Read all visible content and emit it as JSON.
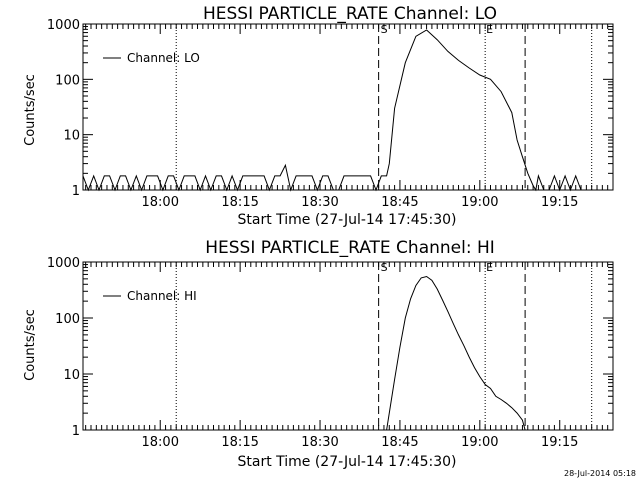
{
  "chart_data": [
    {
      "type": "line",
      "title": "HESSI PARTICLE_RATE Channel: LO",
      "xlabel": "Start Time (27-Jul-14 17:45:30)",
      "ylabel": "Counts/sec",
      "y_scale": "log",
      "ylim": [
        1,
        1000
      ],
      "yticks": [
        "1",
        "10",
        "100",
        "1000"
      ],
      "xlim": [
        "17:45:30",
        "19:25:00"
      ],
      "xticks": [
        "18:00",
        "18:15",
        "18:30",
        "18:45",
        "19:00",
        "19:15"
      ],
      "legend": "top-left",
      "series": [
        {
          "name": "Channel: LO",
          "x": [
            "17:45:30",
            "17:46:30",
            "17:47:30",
            "17:48:30",
            "17:49:30",
            "17:50:30",
            "17:51:30",
            "17:52:30",
            "17:53:30",
            "17:54:30",
            "17:55:30",
            "17:56:30",
            "17:57:30",
            "17:58:30",
            "17:59:30",
            "18:00:30",
            "18:01:30",
            "18:02:30",
            "18:03:30",
            "18:04:30",
            "18:05:30",
            "18:06:30",
            "18:07:30",
            "18:08:30",
            "18:09:30",
            "18:10:30",
            "18:11:30",
            "18:12:30",
            "18:13:30",
            "18:14:30",
            "18:15:30",
            "18:16:30",
            "18:17:30",
            "18:18:30",
            "18:19:30",
            "18:20:30",
            "18:21:30",
            "18:22:30",
            "18:23:30",
            "18:24:30",
            "18:25:30",
            "18:26:30",
            "18:27:30",
            "18:28:30",
            "18:29:30",
            "18:30:30",
            "18:31:30",
            "18:32:30",
            "18:33:30",
            "18:34:30",
            "18:35:30",
            "18:36:30",
            "18:37:30",
            "18:38:30",
            "18:39:30",
            "18:40:30",
            "18:41:30",
            "18:42:30",
            "18:43:00",
            "18:44:00",
            "18:46:00",
            "18:48:00",
            "18:50:00",
            "18:52:00",
            "18:54:00",
            "18:56:00",
            "18:58:00",
            "19:00:00",
            "19:02:00",
            "19:04:00",
            "19:06:00",
            "19:07:00",
            "19:08:00",
            "19:09:00",
            "19:10:00",
            "19:10:30",
            "19:11:00",
            "19:12:00",
            "19:13:00",
            "19:14:00",
            "19:15:00",
            "19:16:00",
            "19:17:00",
            "19:18:00",
            "19:19:00",
            "19:20:00",
            "19:21:00"
          ],
          "values": [
            1.8,
            1,
            1.8,
            1,
            1.8,
            1.8,
            1,
            1.8,
            1.8,
            1,
            1.8,
            1,
            1.8,
            1.8,
            1.8,
            1,
            1.8,
            1.8,
            1,
            1.8,
            1.8,
            1.8,
            1,
            1.8,
            1,
            1.8,
            1.8,
            1,
            1.8,
            1,
            1.8,
            1.8,
            1.8,
            1.8,
            1.8,
            1,
            1.8,
            1.8,
            2.8,
            1,
            1.8,
            1.8,
            1.8,
            1.8,
            1,
            1.8,
            1.8,
            1,
            1,
            1.8,
            1.8,
            1.8,
            1.8,
            1.8,
            1.8,
            1,
            1.8,
            1.8,
            3,
            30,
            200,
            600,
            780,
            520,
            320,
            220,
            160,
            120,
            100,
            60,
            25,
            8,
            4,
            2,
            1.2,
            1,
            1.8,
            1,
            1,
            1.8,
            1,
            1.8,
            1,
            1.8,
            1,
            1,
            1
          ]
        }
      ]
    },
    {
      "type": "line",
      "title": "HESSI PARTICLE_RATE Channel: HI",
      "xlabel": "Start Time (27-Jul-14 17:45:30)",
      "ylabel": "Counts/sec",
      "y_scale": "log",
      "ylim": [
        1,
        1000
      ],
      "yticks": [
        "1",
        "10",
        "100",
        "1000"
      ],
      "xlim": [
        "17:45:30",
        "19:25:00"
      ],
      "xticks": [
        "18:00",
        "18:15",
        "18:30",
        "18:45",
        "19:00",
        "19:15"
      ],
      "legend": "top-left",
      "series": [
        {
          "name": "Channel: HI",
          "x": [
            "18:42:30",
            "18:44:00",
            "18:45:00",
            "18:46:00",
            "18:47:00",
            "18:48:00",
            "18:49:00",
            "18:50:00",
            "18:51:00",
            "18:52:00",
            "18:53:00",
            "18:54:00",
            "18:55:00",
            "18:56:00",
            "18:57:00",
            "18:58:00",
            "18:59:00",
            "19:00:00",
            "19:01:00",
            "19:02:00",
            "19:03:00",
            "19:04:00",
            "19:05:00",
            "19:06:00",
            "19:07:00",
            "19:08:00",
            "19:08:30"
          ],
          "values": [
            1,
            8,
            30,
            100,
            220,
            380,
            520,
            550,
            470,
            330,
            210,
            130,
            80,
            50,
            32,
            20,
            13,
            9,
            6.5,
            5.5,
            4,
            3.5,
            3,
            2.5,
            2,
            1.5,
            1
          ]
        }
      ]
    }
  ],
  "markers": {
    "dotted": [
      "18:03:00",
      "19:01:00",
      "19:21:00"
    ],
    "dashed": [
      "18:41:00",
      "19:08:30"
    ],
    "labels": [
      "S",
      "E"
    ]
  },
  "footer_stamp": "28-Jul-2014 05:18"
}
